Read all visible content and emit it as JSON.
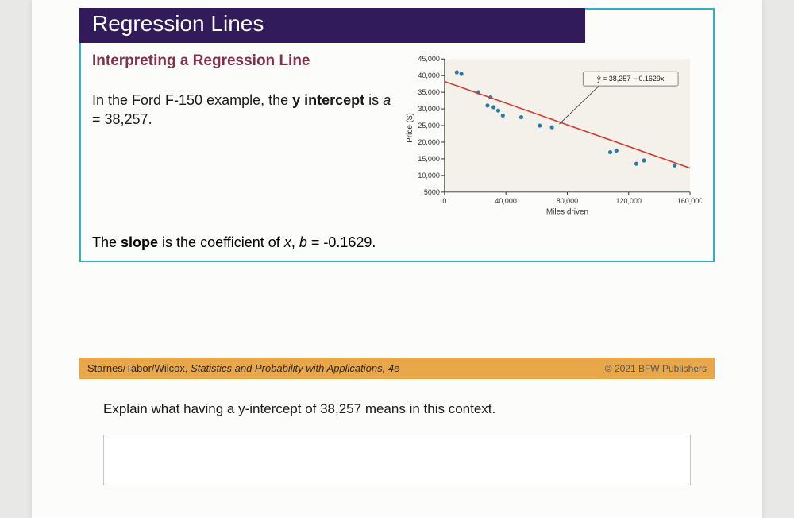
{
  "slide": {
    "title": "Regression Lines",
    "subheading": "Interpreting a Regression Line",
    "body_prefix": "In the Ford F-150 example, the ",
    "body_bold1": "y intercept",
    "body_mid": " is ",
    "body_ital": "a",
    "body_suffix": " = 38,257.",
    "slope_prefix": "The ",
    "slope_bold": "slope",
    "slope_mid": " is the coefficient of ",
    "slope_italx": "x",
    "slope_sep": ", ",
    "slope_italb": "b",
    "slope_suffix": " = -0.1629."
  },
  "chart": {
    "type": "scatter",
    "x_label": "Miles driven",
    "y_label": "Price ($)",
    "equation": "ŷ = 38,257 − 0.1629x",
    "xlim": [
      0,
      160000
    ],
    "ylim": [
      5000,
      45000
    ],
    "x_ticks": [
      0,
      40000,
      80000,
      120000,
      160000
    ],
    "x_tick_labels": [
      "0",
      "40,000",
      "80,000",
      "120,000",
      "160,000"
    ],
    "y_ticks": [
      5000,
      10000,
      15000,
      20000,
      25000,
      30000,
      35000,
      40000,
      45000
    ],
    "y_tick_labels": [
      "5000",
      "10,000",
      "15,000",
      "20,000",
      "25,000",
      "30,000",
      "35,000",
      "40,000",
      "45,000"
    ],
    "points": [
      [
        8000,
        41000
      ],
      [
        11000,
        40500
      ],
      [
        22000,
        35000
      ],
      [
        28000,
        31000
      ],
      [
        30000,
        33500
      ],
      [
        32000,
        30500
      ],
      [
        35000,
        29500
      ],
      [
        38000,
        28000
      ],
      [
        50000,
        27500
      ],
      [
        62000,
        25000
      ],
      [
        70000,
        24500
      ],
      [
        108000,
        17000
      ],
      [
        112000,
        17500
      ],
      [
        125000,
        13500
      ],
      [
        130000,
        14500
      ],
      [
        150000,
        13000
      ]
    ],
    "point_color": "#2a7aa8",
    "point_radius": 2.6,
    "line": {
      "x1": 0,
      "y1": 38257,
      "x2": 160000,
      "y2": 12193
    },
    "line_color": "#d63a2f",
    "line_width": 1.6,
    "background_color": "#f3f1ea",
    "axis_color": "#333333",
    "eqn_box_border": "#888888",
    "eqn_box_fill": "#f9f7f0"
  },
  "footer": {
    "left_prefix": "Starnes/Tabor/Wilcox, ",
    "left_ital": "Statistics and Probability with Applications, 4e",
    "right": "© 2021 BFW Publishers"
  },
  "question": "Explain what having a y-intercept of 38,257 means in this context."
}
